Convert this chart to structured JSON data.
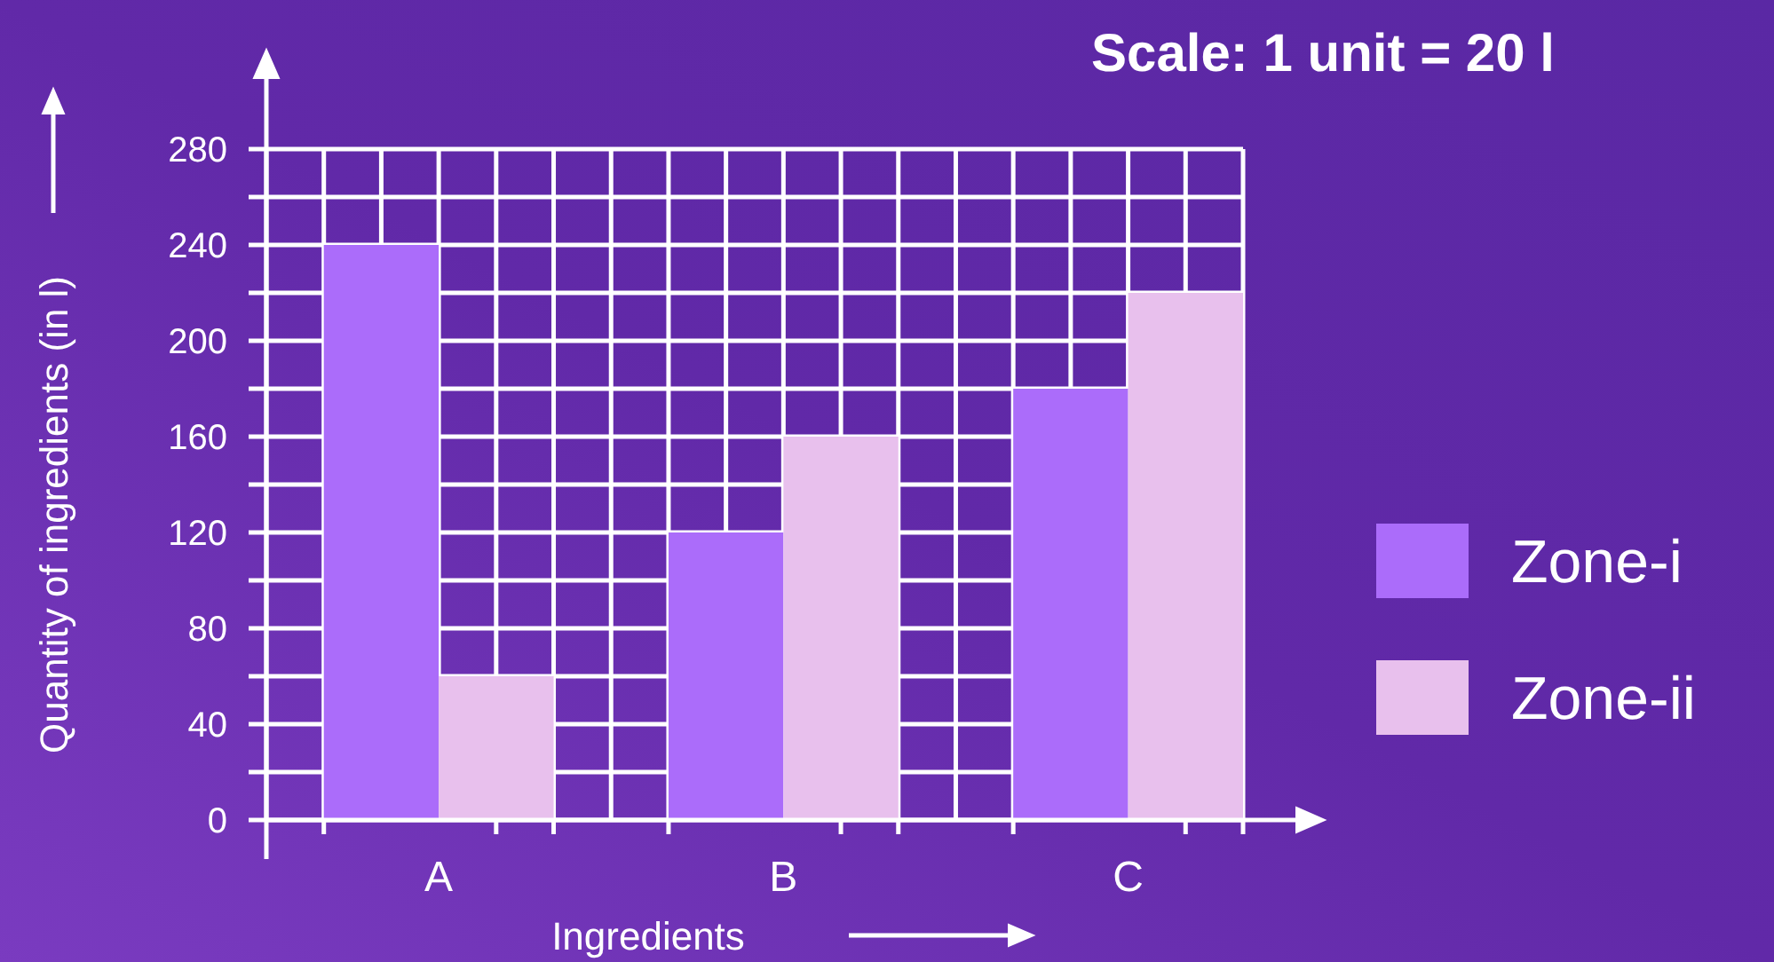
{
  "chart_data": {
    "type": "bar",
    "title": "Scale: 1 unit = 20 l",
    "xlabel": "Ingredients",
    "ylabel": "Quantity of ingredients (in l)",
    "categories": [
      "A",
      "B",
      "C"
    ],
    "series": [
      {
        "name": "Zone-i",
        "color": "#ab6cfa",
        "values": [
          240,
          120,
          180
        ]
      },
      {
        "name": "Zone-ii",
        "color": "#e8c0ed",
        "values": [
          60,
          160,
          220
        ]
      }
    ],
    "ylim": [
      0,
      280
    ],
    "yticks": [
      0,
      {
        "value": 20,
        "label": null
      },
      40,
      {
        "value": 60,
        "label": null
      },
      80,
      {
        "value": 100,
        "label": null
      },
      120,
      {
        "value": 140,
        "label": null
      },
      160,
      {
        "value": 180,
        "label": null
      },
      200,
      {
        "value": 220,
        "label": null
      },
      240,
      {
        "value": 260,
        "label": null
      },
      280
    ],
    "grid": true,
    "legend": "right"
  }
}
